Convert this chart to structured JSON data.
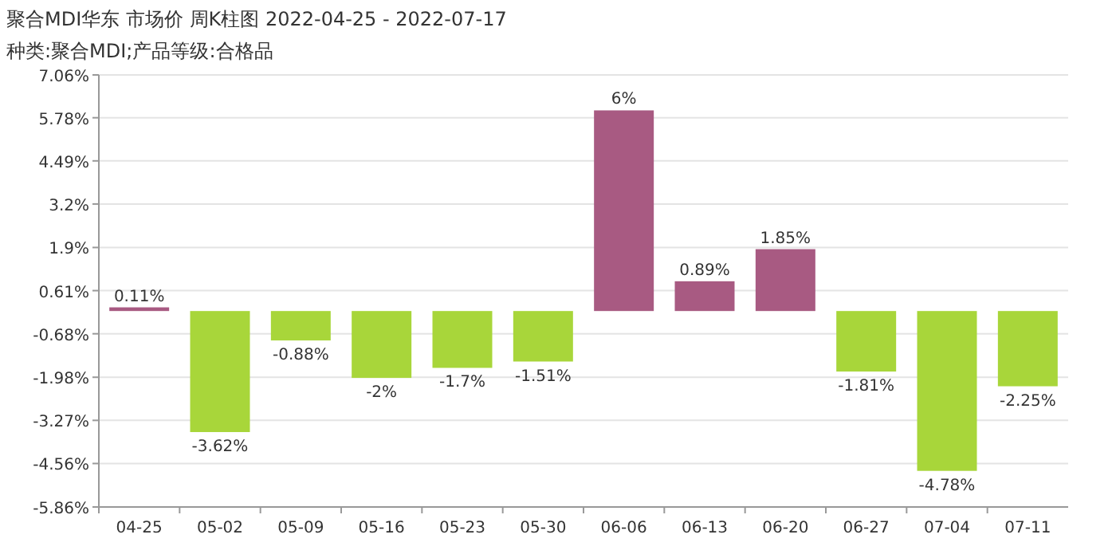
{
  "chart_data": {
    "type": "bar",
    "title": "聚合MDI华东 市场价 周K柱图 2022-04-25 - 2022-07-17",
    "subtitle": "种类:聚合MDI;产品等级:合格品",
    "categories": [
      "04-25",
      "05-02",
      "05-09",
      "05-16",
      "05-23",
      "05-30",
      "06-06",
      "06-13",
      "06-20",
      "06-27",
      "07-04",
      "07-11"
    ],
    "values": [
      0.11,
      -3.62,
      -0.88,
      -2,
      -1.7,
      -1.51,
      6,
      0.89,
      1.85,
      -1.81,
      -4.78,
      -2.25
    ],
    "value_labels": [
      "0.11%",
      "-3.62%",
      "-0.88%",
      "-2%",
      "-1.7%",
      "-1.51%",
      "6%",
      "0.89%",
      "1.85%",
      "-1.81%",
      "-4.78%",
      "-2.25%"
    ],
    "colors": [
      "#a85a82",
      "#a8d63a",
      "#a8d63a",
      "#a8d63a",
      "#a8d63a",
      "#a8d63a",
      "#a85a82",
      "#a85a82",
      "#a85a82",
      "#a8d63a",
      "#a8d63a",
      "#a8d63a"
    ],
    "ylim": [
      -5.86,
      7.06
    ],
    "yticks": [
      {
        "value": 7.06,
        "label": "7.06%"
      },
      {
        "value": 5.78,
        "label": "5.78%"
      },
      {
        "value": 4.49,
        "label": "4.49%"
      },
      {
        "value": 3.2,
        "label": "3.2%"
      },
      {
        "value": 1.9,
        "label": "1.9%"
      },
      {
        "value": 0.61,
        "label": "0.61%"
      },
      {
        "value": -0.68,
        "label": "-0.68%"
      },
      {
        "value": -1.98,
        "label": "-1.98%"
      },
      {
        "value": -3.27,
        "label": "-3.27%"
      },
      {
        "value": -4.56,
        "label": "-4.56%"
      },
      {
        "value": -5.86,
        "label": "-5.86%"
      }
    ],
    "grid": "y"
  }
}
